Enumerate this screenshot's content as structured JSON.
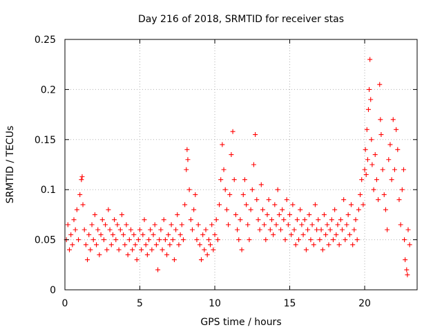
{
  "chart_data": {
    "type": "scatter",
    "title": "Day 216 of 2018, SRMTID for receiver stas",
    "xlabel": "GPS time / hours",
    "ylabel": "SRMTID / TECUs",
    "xlim": [
      0,
      23.5
    ],
    "ylim": [
      0,
      0.25
    ],
    "xticks": [
      0,
      5,
      10,
      15,
      20
    ],
    "xtick_labels": [
      "0",
      "5",
      "10",
      "15",
      "20"
    ],
    "yticks": [
      0,
      0.05,
      0.1,
      0.15,
      0.2,
      0.25
    ],
    "ytick_labels": [
      "0",
      "0.05",
      "0.1",
      "0.15",
      "0.2",
      "0.25"
    ],
    "grid": true,
    "marker": "+",
    "color": "#ff0000",
    "series": [
      {
        "name": "SRMTID",
        "points": [
          [
            0.1,
            0.05
          ],
          [
            0.2,
            0.065
          ],
          [
            0.3,
            0.04
          ],
          [
            0.4,
            0.055
          ],
          [
            0.5,
            0.045
          ],
          [
            0.6,
            0.07
          ],
          [
            0.7,
            0.06
          ],
          [
            0.8,
            0.08
          ],
          [
            0.9,
            0.05
          ],
          [
            1.0,
            0.095
          ],
          [
            1.1,
            0.11
          ],
          [
            1.15,
            0.113
          ],
          [
            1.2,
            0.085
          ],
          [
            1.3,
            0.06
          ],
          [
            1.4,
            0.045
          ],
          [
            1.5,
            0.03
          ],
          [
            1.6,
            0.055
          ],
          [
            1.7,
            0.04
          ],
          [
            1.8,
            0.065
          ],
          [
            1.9,
            0.05
          ],
          [
            2.0,
            0.075
          ],
          [
            2.1,
            0.045
          ],
          [
            2.2,
            0.06
          ],
          [
            2.3,
            0.035
          ],
          [
            2.4,
            0.055
          ],
          [
            2.5,
            0.07
          ],
          [
            2.6,
            0.05
          ],
          [
            2.7,
            0.065
          ],
          [
            2.8,
            0.04
          ],
          [
            2.9,
            0.08
          ],
          [
            3.0,
            0.06
          ],
          [
            3.1,
            0.045
          ],
          [
            3.2,
            0.055
          ],
          [
            3.3,
            0.07
          ],
          [
            3.4,
            0.05
          ],
          [
            3.5,
            0.065
          ],
          [
            3.6,
            0.04
          ],
          [
            3.7,
            0.06
          ],
          [
            3.8,
            0.075
          ],
          [
            3.9,
            0.055
          ],
          [
            4.0,
            0.045
          ],
          [
            4.1,
            0.065
          ],
          [
            4.2,
            0.035
          ],
          [
            4.3,
            0.05
          ],
          [
            4.4,
            0.06
          ],
          [
            4.5,
            0.04
          ],
          [
            4.6,
            0.055
          ],
          [
            4.7,
            0.045
          ],
          [
            4.8,
            0.03
          ],
          [
            4.9,
            0.05
          ],
          [
            5.0,
            0.06
          ],
          [
            5.1,
            0.04
          ],
          [
            5.2,
            0.055
          ],
          [
            5.3,
            0.07
          ],
          [
            5.4,
            0.045
          ],
          [
            5.5,
            0.035
          ],
          [
            5.6,
            0.05
          ],
          [
            5.7,
            0.06
          ],
          [
            5.8,
            0.04
          ],
          [
            5.9,
            0.055
          ],
          [
            6.0,
            0.065
          ],
          [
            6.1,
            0.045
          ],
          [
            6.2,
            0.02
          ],
          [
            6.3,
            0.05
          ],
          [
            6.4,
            0.06
          ],
          [
            6.5,
            0.04
          ],
          [
            6.6,
            0.07
          ],
          [
            6.7,
            0.05
          ],
          [
            6.8,
            0.035
          ],
          [
            6.9,
            0.055
          ],
          [
            7.0,
            0.045
          ],
          [
            7.1,
            0.065
          ],
          [
            7.2,
            0.05
          ],
          [
            7.3,
            0.03
          ],
          [
            7.4,
            0.06
          ],
          [
            7.5,
            0.075
          ],
          [
            7.6,
            0.045
          ],
          [
            7.7,
            0.055
          ],
          [
            7.8,
            0.065
          ],
          [
            7.9,
            0.05
          ],
          [
            8.0,
            0.085
          ],
          [
            8.1,
            0.12
          ],
          [
            8.15,
            0.14
          ],
          [
            8.2,
            0.13
          ],
          [
            8.3,
            0.1
          ],
          [
            8.4,
            0.07
          ],
          [
            8.5,
            0.06
          ],
          [
            8.6,
            0.08
          ],
          [
            8.7,
            0.095
          ],
          [
            8.8,
            0.05
          ],
          [
            8.9,
            0.065
          ],
          [
            9.0,
            0.045
          ],
          [
            9.1,
            0.03
          ],
          [
            9.2,
            0.055
          ],
          [
            9.3,
            0.04
          ],
          [
            9.4,
            0.06
          ],
          [
            9.5,
            0.035
          ],
          [
            9.6,
            0.05
          ],
          [
            9.7,
            0.045
          ],
          [
            9.8,
            0.065
          ],
          [
            9.9,
            0.04
          ],
          [
            10.0,
            0.055
          ],
          [
            10.1,
            0.07
          ],
          [
            10.2,
            0.05
          ],
          [
            10.3,
            0.085
          ],
          [
            10.4,
            0.11
          ],
          [
            10.5,
            0.145
          ],
          [
            10.6,
            0.12
          ],
          [
            10.7,
            0.1
          ],
          [
            10.8,
            0.08
          ],
          [
            10.9,
            0.065
          ],
          [
            11.0,
            0.095
          ],
          [
            11.1,
            0.135
          ],
          [
            11.2,
            0.158
          ],
          [
            11.3,
            0.11
          ],
          [
            11.4,
            0.075
          ],
          [
            11.5,
            0.06
          ],
          [
            11.6,
            0.05
          ],
          [
            11.7,
            0.07
          ],
          [
            11.8,
            0.04
          ],
          [
            11.9,
            0.095
          ],
          [
            12.0,
            0.11
          ],
          [
            12.1,
            0.085
          ],
          [
            12.2,
            0.065
          ],
          [
            12.3,
            0.05
          ],
          [
            12.4,
            0.08
          ],
          [
            12.5,
            0.1
          ],
          [
            12.6,
            0.125
          ],
          [
            12.7,
            0.155
          ],
          [
            12.8,
            0.09
          ],
          [
            12.9,
            0.07
          ],
          [
            13.0,
            0.06
          ],
          [
            13.1,
            0.105
          ],
          [
            13.2,
            0.08
          ],
          [
            13.3,
            0.065
          ],
          [
            13.4,
            0.05
          ],
          [
            13.5,
            0.075
          ],
          [
            13.6,
            0.09
          ],
          [
            13.7,
            0.06
          ],
          [
            13.8,
            0.07
          ],
          [
            13.9,
            0.055
          ],
          [
            14.0,
            0.085
          ],
          [
            14.1,
            0.065
          ],
          [
            14.2,
            0.1
          ],
          [
            14.3,
            0.075
          ],
          [
            14.4,
            0.06
          ],
          [
            14.5,
            0.08
          ],
          [
            14.6,
            0.07
          ],
          [
            14.7,
            0.05
          ],
          [
            14.8,
            0.09
          ],
          [
            14.9,
            0.065
          ],
          [
            15.0,
            0.075
          ],
          [
            15.1,
            0.055
          ],
          [
            15.2,
            0.085
          ],
          [
            15.3,
            0.06
          ],
          [
            15.4,
            0.045
          ],
          [
            15.5,
            0.07
          ],
          [
            15.6,
            0.05
          ],
          [
            15.7,
            0.08
          ],
          [
            15.8,
            0.065
          ],
          [
            15.9,
            0.055
          ],
          [
            16.0,
            0.07
          ],
          [
            16.1,
            0.04
          ],
          [
            16.2,
            0.06
          ],
          [
            16.3,
            0.075
          ],
          [
            16.4,
            0.05
          ],
          [
            16.5,
            0.065
          ],
          [
            16.6,
            0.045
          ],
          [
            16.7,
            0.085
          ],
          [
            16.8,
            0.06
          ],
          [
            16.9,
            0.07
          ],
          [
            17.0,
            0.05
          ],
          [
            17.1,
            0.06
          ],
          [
            17.2,
            0.04
          ],
          [
            17.3,
            0.075
          ],
          [
            17.4,
            0.055
          ],
          [
            17.5,
            0.065
          ],
          [
            17.6,
            0.045
          ],
          [
            17.7,
            0.06
          ],
          [
            17.8,
            0.07
          ],
          [
            17.9,
            0.05
          ],
          [
            18.0,
            0.08
          ],
          [
            18.1,
            0.055
          ],
          [
            18.2,
            0.065
          ],
          [
            18.3,
            0.045
          ],
          [
            18.4,
            0.07
          ],
          [
            18.5,
            0.06
          ],
          [
            18.6,
            0.09
          ],
          [
            18.7,
            0.05
          ],
          [
            18.8,
            0.065
          ],
          [
            18.9,
            0.075
          ],
          [
            19.0,
            0.055
          ],
          [
            19.1,
            0.085
          ],
          [
            19.2,
            0.045
          ],
          [
            19.3,
            0.06
          ],
          [
            19.4,
            0.07
          ],
          [
            19.5,
            0.05
          ],
          [
            19.6,
            0.08
          ],
          [
            19.7,
            0.095
          ],
          [
            19.8,
            0.11
          ],
          [
            19.9,
            0.085
          ],
          [
            20.0,
            0.12
          ],
          [
            20.05,
            0.14
          ],
          [
            20.1,
            0.115
          ],
          [
            20.15,
            0.16
          ],
          [
            20.2,
            0.13
          ],
          [
            20.25,
            0.18
          ],
          [
            20.3,
            0.2
          ],
          [
            20.35,
            0.23
          ],
          [
            20.4,
            0.19
          ],
          [
            20.45,
            0.15
          ],
          [
            20.5,
            0.125
          ],
          [
            20.6,
            0.1
          ],
          [
            20.7,
            0.135
          ],
          [
            20.8,
            0.11
          ],
          [
            20.9,
            0.09
          ],
          [
            21.0,
            0.205
          ],
          [
            21.05,
            0.17
          ],
          [
            21.1,
            0.155
          ],
          [
            21.2,
            0.12
          ],
          [
            21.3,
            0.095
          ],
          [
            21.4,
            0.08
          ],
          [
            21.5,
            0.06
          ],
          [
            21.6,
            0.13
          ],
          [
            21.7,
            0.145
          ],
          [
            21.8,
            0.11
          ],
          [
            21.9,
            0.17
          ],
          [
            22.0,
            0.12
          ],
          [
            22.1,
            0.16
          ],
          [
            22.2,
            0.14
          ],
          [
            22.3,
            0.09
          ],
          [
            22.4,
            0.065
          ],
          [
            22.5,
            0.1
          ],
          [
            22.6,
            0.12
          ],
          [
            22.65,
            0.05
          ],
          [
            22.7,
            0.03
          ],
          [
            22.8,
            0.02
          ],
          [
            22.85,
            0.015
          ],
          [
            22.9,
            0.06
          ],
          [
            23.0,
            0.045
          ]
        ]
      }
    ]
  }
}
